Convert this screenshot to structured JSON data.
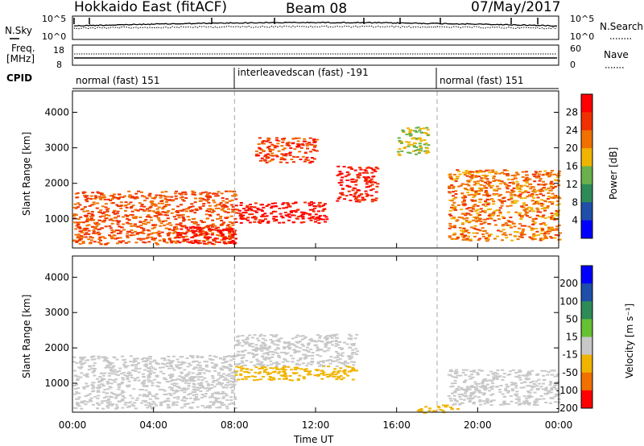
{
  "header": {
    "title": "Hokkaido East (fitACF)",
    "beam": "Beam 08",
    "date": "07/May/2017"
  },
  "noise_panel": {
    "left_label": "N.Sky",
    "right_label": "N.Search",
    "ticks_left": [
      "10^5",
      "10^0"
    ],
    "ticks_right": [
      "10^5",
      "10^0"
    ]
  },
  "freq_panel": {
    "left_label_1": "Freq.",
    "left_label_2": "[MHz]",
    "right_label": "Nave",
    "ticks_left": [
      "18",
      "8"
    ],
    "ticks_right": [
      "60",
      "0"
    ]
  },
  "cpid": {
    "label": "CPID",
    "segments": [
      "normal (fast) 151",
      "interleavedscan (fast) -191",
      "normal (fast) 151"
    ]
  },
  "power_panel": {
    "ylabel": "Slant Range [km]",
    "yticks": [
      "4000",
      "3000",
      "2000",
      "1000"
    ],
    "colorbar_label": "Power [dB]",
    "colorbar_ticks": [
      "28",
      "24",
      "20",
      "16",
      "12",
      "8",
      "4"
    ],
    "colors": [
      "#ff0000",
      "#f03000",
      "#f07000",
      "#f0b400",
      "#6ab04c",
      "#2e8b57",
      "#1f4fa8",
      "#0000ff"
    ]
  },
  "velocity_panel": {
    "ylabel": "Slant Range [km]",
    "yticks": [
      "4000",
      "3000",
      "2000",
      "1000"
    ],
    "colorbar_label": "Velocity [m s⁻¹]",
    "colorbar_ticks": [
      "200",
      "100",
      "50",
      "15",
      "-15",
      "-50",
      "-100",
      "-200"
    ],
    "colors": [
      "#0000ff",
      "#1f4fa8",
      "#2e8b57",
      "#66c033",
      "#c8c8c8",
      "#f0b400",
      "#f07000",
      "#ff0000"
    ]
  },
  "xaxis": {
    "label": "Time UT",
    "ticks": [
      "00:00",
      "04:00",
      "08:00",
      "12:00",
      "16:00",
      "20:00",
      "00:00"
    ]
  },
  "chart_data": {
    "type": "heatmap",
    "title": "Hokkaido East (fitACF)",
    "xlabel": "Time UT",
    "ylabel": "Slant Range [km]",
    "xlim": [
      0,
      24
    ],
    "ylim": [
      180,
      4600
    ],
    "mode_changes_ut": [
      8.0,
      18.0
    ],
    "power_regions_db": [
      {
        "t": [
          0,
          8
        ],
        "r": [
          300,
          1800
        ],
        "power_db": 24
      },
      {
        "t": [
          5,
          8
        ],
        "r": [
          300,
          800
        ],
        "power_db": 30
      },
      {
        "t": [
          8,
          12.5
        ],
        "r": [
          900,
          1500
        ],
        "power_db": 30
      },
      {
        "t": [
          9,
          12
        ],
        "r": [
          2600,
          3300
        ],
        "power_db": 26
      },
      {
        "t": [
          13,
          15
        ],
        "r": [
          1500,
          2500
        ],
        "power_db": 28
      },
      {
        "t": [
          16,
          17.5
        ],
        "r": [
          2800,
          3600
        ],
        "power_db": 16
      },
      {
        "t": [
          18.5,
          24
        ],
        "r": [
          400,
          2400
        ],
        "power_db": 22
      }
    ],
    "velocity_regions_ms": [
      {
        "t": [
          0,
          8
        ],
        "r": [
          300,
          1800
        ],
        "velocity_ms": 0
      },
      {
        "t": [
          8,
          14
        ],
        "r": [
          1100,
          1500
        ],
        "velocity_ms": -30
      },
      {
        "t": [
          8,
          14
        ],
        "r": [
          1500,
          2400
        ],
        "velocity_ms": 0
      },
      {
        "t": [
          17,
          19
        ],
        "r": [
          180,
          400
        ],
        "velocity_ms": -40
      },
      {
        "t": [
          18.5,
          24
        ],
        "r": [
          400,
          1400
        ],
        "velocity_ms": 0
      }
    ]
  }
}
